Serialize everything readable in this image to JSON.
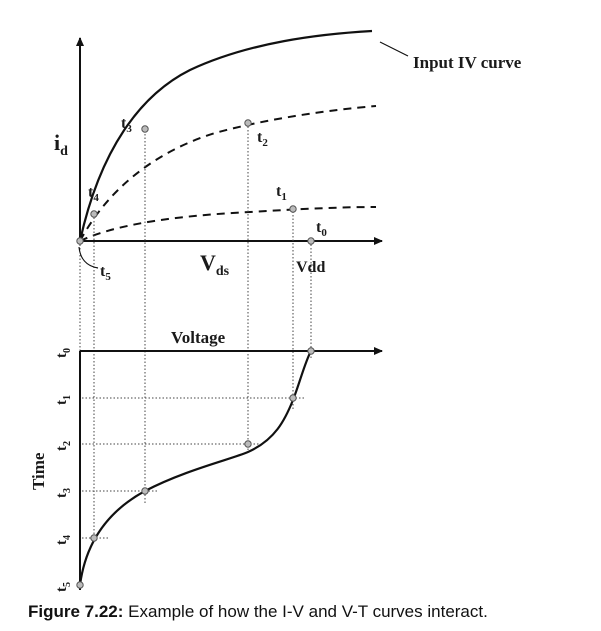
{
  "labels": {
    "callout": "Input IV curve",
    "y_top": "i",
    "y_top_sub": "d",
    "x_top": "V",
    "x_top_sub": "ds",
    "vdd": "Vdd",
    "voltage": "Voltage",
    "time": "Time",
    "tp": {
      "t0": {
        "base": "t",
        "sub": "0"
      },
      "t1": {
        "base": "t",
        "sub": "1"
      },
      "t2": {
        "base": "t",
        "sub": "2"
      },
      "t3": {
        "base": "t",
        "sub": "3"
      },
      "t4": {
        "base": "t",
        "sub": "4"
      },
      "t5": {
        "base": "t",
        "sub": "5"
      }
    },
    "ty": {
      "t0": {
        "base": "t",
        "sub": "0"
      },
      "t1": {
        "base": "t",
        "sub": "1"
      },
      "t2": {
        "base": "t",
        "sub": "2"
      },
      "t3": {
        "base": "t",
        "sub": "3"
      },
      "t4": {
        "base": "t",
        "sub": "4"
      },
      "t5": {
        "base": "t",
        "sub": "5"
      }
    }
  },
  "caption": {
    "bold": "Figure 7.22:",
    "text": " Example of how the I-V and V-T curves interact."
  }
}
